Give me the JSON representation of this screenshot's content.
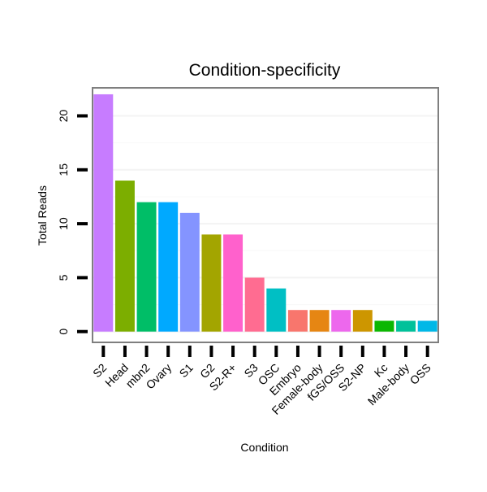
{
  "chart_data": {
    "type": "bar",
    "title": "Condition-specificity",
    "xlabel": "Condition",
    "ylabel": "Total Reads",
    "ylim": [
      -1,
      22.6
    ],
    "yticks": [
      0,
      5,
      10,
      15,
      20
    ],
    "ytick_labels": [
      "0",
      "5",
      "10",
      "15",
      "20"
    ],
    "categories": [
      "S2",
      "Head",
      "mbn2",
      "Ovary",
      "S1",
      "G2",
      "S2-R+",
      "S3",
      "OSC",
      "Embryo",
      "Female-body",
      "fGS/OSS",
      "S2-NP",
      "Kc",
      "Male-body",
      "OSS"
    ],
    "values": [
      22,
      14,
      12,
      12,
      11,
      9,
      9,
      5,
      4,
      2,
      2,
      2,
      2,
      1,
      1,
      1
    ],
    "colors": [
      "#c77cff",
      "#7cae00",
      "#00be67",
      "#00a9ff",
      "#8494ff",
      "#a3a500",
      "#ff61cc",
      "#ff6c91",
      "#00bfc4",
      "#f8766d",
      "#e68613",
      "#ed68ed",
      "#cd9600",
      "#0cb702",
      "#00c19a",
      "#00b8e7"
    ],
    "grid": true,
    "legend": "none"
  }
}
